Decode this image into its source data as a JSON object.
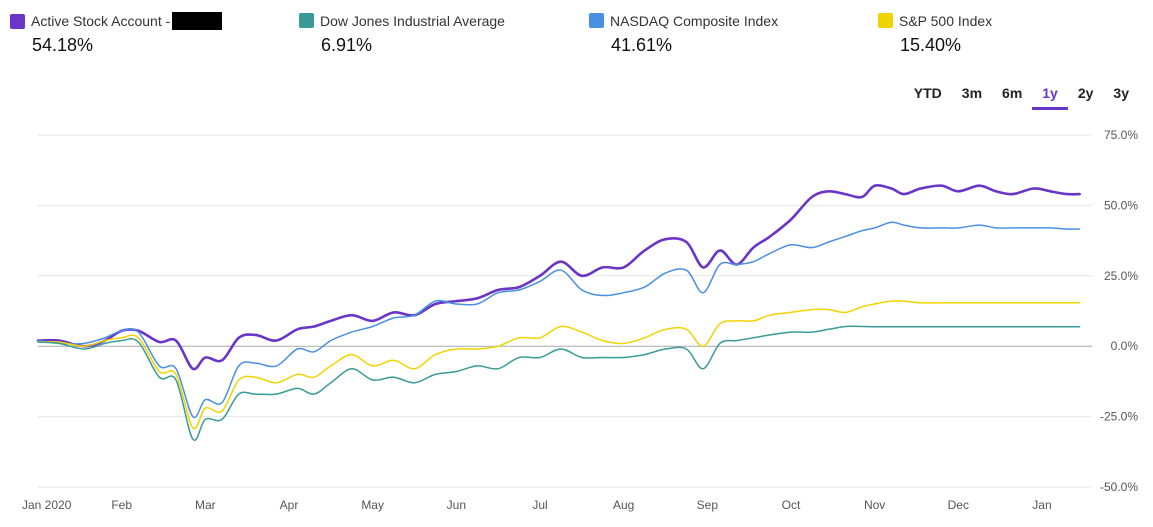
{
  "legend": [
    {
      "name": "Active Stock Account -",
      "value": "54.18%",
      "color": "#6a35c9",
      "redacted": true
    },
    {
      "name": "Dow Jones Industrial Average",
      "value": "6.91%",
      "color": "#3a9a97",
      "redacted": false
    },
    {
      "name": "NASDAQ Composite Index",
      "value": "41.61%",
      "color": "#4a90e2",
      "redacted": false
    },
    {
      "name": "S&P 500 Index",
      "value": "15.40%",
      "color": "#f0d400",
      "redacted": false
    }
  ],
  "ranges": {
    "items": [
      "YTD",
      "3m",
      "6m",
      "1y",
      "2y",
      "3y"
    ],
    "active": "1y"
  },
  "chart_data": {
    "type": "line",
    "x_labels": [
      "Jan 2020",
      "Feb",
      "Mar",
      "Apr",
      "May",
      "Jun",
      "Jul",
      "Aug",
      "Sep",
      "Oct",
      "Nov",
      "Dec",
      "Jan"
    ],
    "x_range": [
      0,
      12.55
    ],
    "y_tick_labels": [
      "75.0%",
      "50.0%",
      "25.0%",
      "0.0%",
      "-25.0%",
      "-50.0%"
    ],
    "ylim": [
      -50,
      75
    ],
    "grid": true,
    "series": [
      {
        "name": "Active Stock Account -",
        "color": "#6a35c9",
        "x": [
          0,
          0.25,
          0.55,
          0.8,
          1.0,
          1.2,
          1.45,
          1.65,
          1.85,
          2.0,
          2.2,
          2.4,
          2.6,
          2.85,
          3.1,
          3.3,
          3.5,
          3.75,
          4.0,
          4.25,
          4.5,
          4.75,
          5.0,
          5.25,
          5.5,
          5.75,
          6.0,
          6.25,
          6.5,
          6.75,
          7.0,
          7.25,
          7.5,
          7.75,
          7.95,
          8.15,
          8.35,
          8.55,
          8.75,
          9.0,
          9.25,
          9.45,
          9.65,
          9.85,
          10.0,
          10.2,
          10.35,
          10.55,
          10.8,
          11.0,
          11.25,
          11.45,
          11.65,
          11.9,
          12.1,
          12.3,
          12.45
        ],
        "y": [
          2,
          2,
          0,
          2,
          5.5,
          5.5,
          1.5,
          2,
          -8,
          -4,
          -5,
          3,
          4,
          2,
          6,
          7,
          9,
          11,
          9,
          12,
          11,
          15,
          16,
          17,
          20,
          21,
          25,
          30,
          25,
          28,
          28,
          34,
          38,
          37,
          28,
          34,
          29,
          35,
          39,
          45,
          53,
          55,
          54,
          53,
          57,
          56,
          54,
          56,
          57,
          55,
          57,
          55,
          54,
          56,
          55,
          54,
          54
        ],
        "_note": "",
        "values_shown": "54.18%"
      },
      {
        "name": "NASDAQ Composite Index",
        "color": "#4a90e2",
        "x": [
          0,
          0.25,
          0.55,
          0.8,
          1.0,
          1.2,
          1.45,
          1.65,
          1.85,
          2.0,
          2.2,
          2.4,
          2.6,
          2.85,
          3.1,
          3.3,
          3.5,
          3.75,
          4.0,
          4.25,
          4.5,
          4.75,
          5.0,
          5.25,
          5.5,
          5.75,
          6.0,
          6.25,
          6.5,
          6.75,
          7.0,
          7.25,
          7.5,
          7.75,
          7.95,
          8.15,
          8.35,
          8.55,
          8.75,
          9.0,
          9.25,
          9.45,
          9.65,
          9.85,
          10.0,
          10.2,
          10.35,
          10.55,
          10.8,
          11.0,
          11.25,
          11.45,
          11.65,
          11.9,
          12.1,
          12.3,
          12.45
        ],
        "y": [
          2,
          1,
          1,
          3,
          5.5,
          5,
          -7,
          -8,
          -25,
          -19,
          -20,
          -7,
          -6,
          -7,
          -1,
          -2,
          2,
          5,
          7,
          10,
          11,
          16,
          15,
          15,
          19,
          20,
          23,
          27,
          20,
          18,
          19,
          21,
          26,
          27,
          19,
          29,
          29,
          30,
          33,
          36,
          35,
          37,
          39,
          41,
          42,
          44,
          43,
          42,
          42,
          42,
          43,
          42,
          42,
          42,
          42,
          41.61,
          41.61
        ]
      },
      {
        "name": "S&P 500 Index",
        "color": "#f0d400",
        "x": [
          0,
          0.25,
          0.55,
          0.8,
          1.0,
          1.2,
          1.45,
          1.65,
          1.85,
          2.0,
          2.2,
          2.4,
          2.6,
          2.85,
          3.1,
          3.3,
          3.5,
          3.75,
          4.0,
          4.25,
          4.5,
          4.75,
          5.0,
          5.25,
          5.5,
          5.75,
          6.0,
          6.25,
          6.5,
          6.75,
          7.0,
          7.25,
          7.5,
          7.75,
          7.95,
          8.15,
          8.35,
          8.55,
          8.75,
          9.0,
          9.25,
          9.45,
          9.65,
          9.85,
          10.0,
          10.2,
          10.35,
          10.55,
          10.8,
          11.0,
          11.25,
          11.45,
          11.65,
          11.9,
          12.1,
          12.3,
          12.45
        ],
        "y": [
          1.5,
          1.5,
          0,
          2,
          3,
          3,
          -9,
          -10,
          -29,
          -22,
          -23,
          -12,
          -11,
          -13,
          -10,
          -11,
          -7,
          -3,
          -7,
          -5,
          -8,
          -3,
          -1,
          -1,
          0,
          3,
          3,
          7,
          5,
          2,
          1,
          3,
          6,
          6,
          0,
          8,
          9,
          9,
          11,
          12,
          13,
          13,
          12,
          14,
          15,
          16,
          16,
          15.4,
          15.4,
          15.4,
          15.4,
          15.4,
          15.4,
          15.4,
          15.4,
          15.4,
          15.4
        ]
      },
      {
        "name": "Dow Jones Industrial Average",
        "color": "#3a9a97",
        "x": [
          0,
          0.25,
          0.55,
          0.8,
          1.0,
          1.2,
          1.45,
          1.65,
          1.85,
          2.0,
          2.2,
          2.4,
          2.6,
          2.85,
          3.1,
          3.3,
          3.5,
          3.75,
          4.0,
          4.25,
          4.5,
          4.75,
          5.0,
          5.25,
          5.5,
          5.75,
          6.0,
          6.25,
          6.5,
          6.75,
          7.0,
          7.25,
          7.5,
          7.75,
          7.95,
          8.15,
          8.35,
          8.55,
          8.75,
          9.0,
          9.25,
          9.45,
          9.65,
          9.85,
          10.0,
          10.2,
          10.35,
          10.55,
          10.8,
          11.0,
          11.25,
          11.45,
          11.65,
          11.9,
          12.1,
          12.3,
          12.45
        ],
        "y": [
          1.5,
          1,
          -1,
          1,
          2,
          1.5,
          -11,
          -12,
          -33,
          -26,
          -26,
          -17,
          -17,
          -17,
          -15,
          -17,
          -13,
          -8,
          -12,
          -11,
          -13,
          -10,
          -9,
          -7,
          -8,
          -4,
          -4,
          -1,
          -4,
          -4,
          -4,
          -3,
          -1,
          -1,
          -8,
          1,
          2,
          3,
          4,
          5,
          5,
          6,
          7,
          7,
          6.91,
          6.91,
          6.91,
          6.91,
          6.91,
          6.91,
          6.91,
          6.91,
          6.91,
          6.91,
          6.91,
          6.91,
          6.91
        ]
      }
    ]
  }
}
